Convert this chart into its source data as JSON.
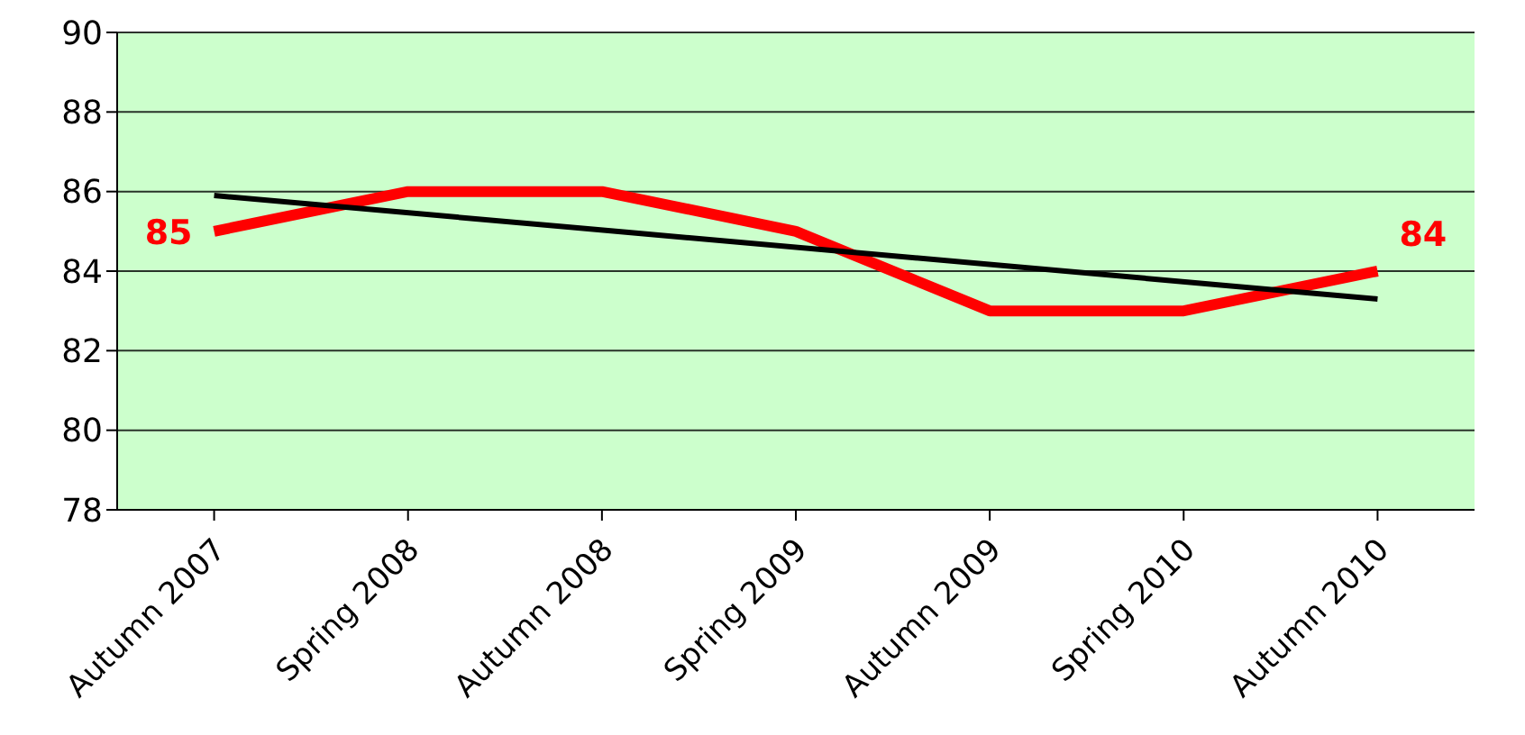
{
  "chart_data": {
    "type": "line",
    "categories": [
      "Autumn 2007",
      "Spring 2008",
      "Autumn 2008",
      "Spring 2009",
      "Autumn 2009",
      "Spring 2010",
      "Autumn 2010"
    ],
    "series": [
      {
        "color": "#ff0000",
        "values": [
          85,
          86,
          86,
          85,
          83,
          83,
          84
        ],
        "value_labels": [
          "85",
          null,
          null,
          null,
          null,
          null,
          "84"
        ]
      },
      {
        "color": "#000000",
        "values": [
          85.9,
          null,
          null,
          null,
          null,
          null,
          83.3
        ]
      }
    ],
    "ylim": [
      78,
      90
    ],
    "yticks": [
      78,
      80,
      82,
      84,
      86,
      88,
      90
    ],
    "grid": "y",
    "marker": "none"
  }
}
